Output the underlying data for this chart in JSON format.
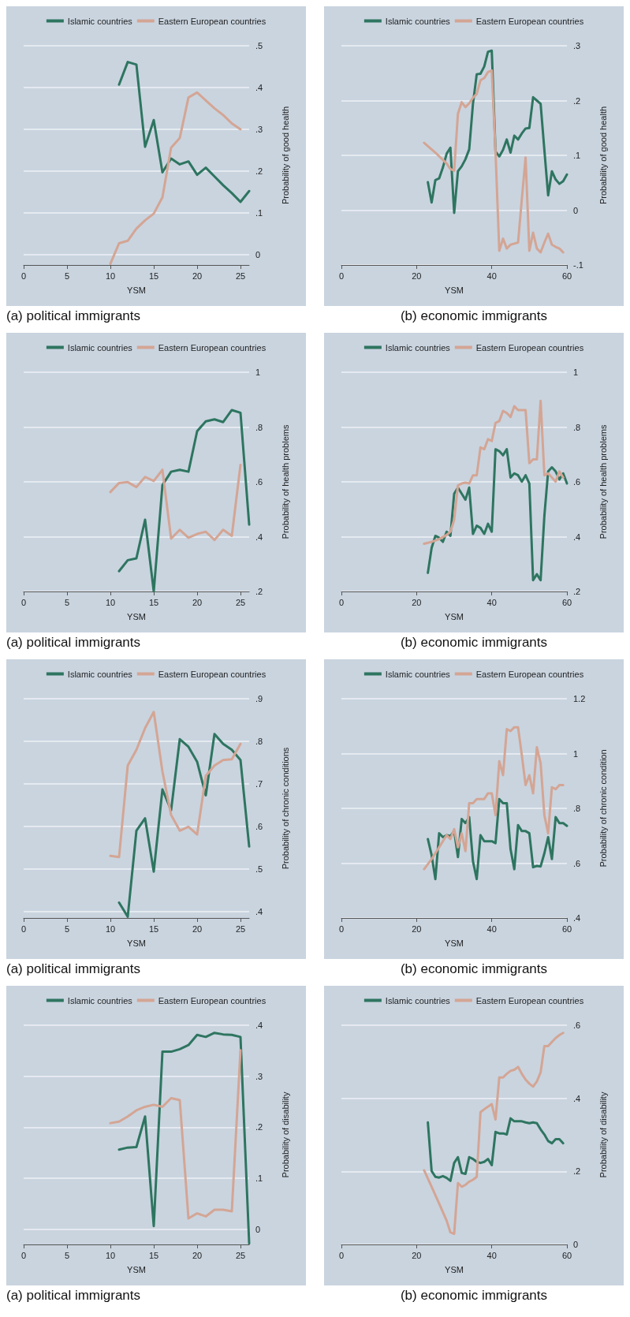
{
  "chart_data": [
    {
      "type": "line",
      "title": "(a) political immigrants",
      "xlabel": "YSM",
      "ylabel": "Probability of good health",
      "legend": "top",
      "grid": "y",
      "xlim": [
        0,
        26
      ],
      "xticks": [
        0,
        5,
        10,
        15,
        20,
        25
      ],
      "ylim": [
        -0.025,
        0.5
      ],
      "yticks": [
        0,
        {
          "value": 0.1,
          "label": ".1"
        },
        {
          "value": 0.2,
          "label": ".2"
        },
        {
          "value": 0.3,
          "label": ".3"
        },
        {
          "value": 0.4,
          "label": ".4"
        },
        {
          "value": 0.5,
          "label": ".5"
        }
      ],
      "series": [
        {
          "name": "Islamic countries",
          "color": "#2e7560",
          "x": [
            11,
            12,
            13,
            14,
            15,
            16,
            17,
            18,
            19,
            20,
            21,
            22,
            23,
            24,
            25,
            26
          ],
          "values": [
            0.407,
            0.461,
            0.455,
            0.258,
            0.322,
            0.197,
            0.23,
            0.216,
            0.223,
            0.191,
            0.208,
            0.187,
            0.166,
            0.147,
            0.126,
            0.152
          ]
        },
        {
          "name": "Eastern European countries",
          "color": "#d4a594",
          "x": [
            10,
            11,
            12,
            13,
            14,
            15,
            16,
            17,
            18,
            19,
            20,
            21,
            22,
            23,
            24,
            25
          ],
          "values": [
            -0.022,
            0.027,
            0.033,
            0.062,
            0.082,
            0.098,
            0.137,
            0.256,
            0.279,
            0.376,
            0.388,
            0.369,
            0.35,
            0.334,
            0.314,
            0.3
          ]
        }
      ]
    },
    {
      "type": "line",
      "title": "(b) economic immigrants",
      "xlabel": "YSM",
      "ylabel": "Probability of good health",
      "legend": "top",
      "grid": "y",
      "xlim": [
        0,
        60
      ],
      "xticks": [
        0,
        20,
        40,
        60
      ],
      "ylim": [
        -0.1,
        0.3
      ],
      "yticks": [
        {
          "value": -0.1,
          "label": "-.1"
        },
        0,
        {
          "value": 0.1,
          "label": ".1"
        },
        {
          "value": 0.2,
          "label": ".2"
        },
        {
          "value": 0.3,
          "label": ".3"
        }
      ],
      "series": [
        {
          "name": "Islamic countries",
          "color": "#2e7560",
          "x": [
            23,
            24,
            25,
            26,
            27,
            28,
            29,
            30,
            31,
            32,
            33,
            34,
            35,
            36,
            37,
            38,
            39,
            40,
            41,
            42,
            43,
            44,
            45,
            46,
            47,
            48,
            49,
            50,
            51,
            52,
            53,
            54,
            55,
            56,
            57,
            58,
            59,
            60
          ],
          "values": [
            0.051,
            0.014,
            0.055,
            0.058,
            0.078,
            0.103,
            0.114,
            -0.005,
            0.071,
            0.08,
            0.093,
            0.111,
            0.194,
            0.248,
            0.249,
            0.262,
            0.289,
            0.291,
            0.107,
            0.098,
            0.11,
            0.129,
            0.105,
            0.136,
            0.129,
            0.14,
            0.149,
            0.15,
            0.206,
            0.2,
            0.194,
            0.11,
            0.027,
            0.071,
            0.056,
            0.048,
            0.053,
            0.065
          ]
        },
        {
          "name": "Eastern European countries",
          "color": "#d4a594",
          "x": [
            22,
            25,
            28,
            29,
            30,
            31,
            32,
            33,
            34,
            35,
            36,
            37,
            38,
            39,
            40,
            41,
            42,
            43,
            44,
            45,
            46,
            47,
            48,
            49,
            50,
            51,
            52,
            53,
            54,
            55,
            56,
            57,
            58,
            59
          ],
          "values": [
            0.123,
            0.105,
            0.085,
            0.075,
            0.072,
            0.176,
            0.197,
            0.188,
            0.195,
            0.205,
            0.212,
            0.237,
            0.241,
            0.252,
            0.255,
            0.107,
            -0.074,
            -0.052,
            -0.07,
            -0.063,
            -0.061,
            -0.059,
            0.02,
            0.096,
            -0.074,
            -0.041,
            -0.07,
            -0.077,
            -0.059,
            -0.043,
            -0.063,
            -0.067,
            -0.07,
            -0.077
          ]
        }
      ]
    },
    {
      "type": "line",
      "title": "(a) political immigrants",
      "xlabel": "YSM",
      "ylabel": "Probability of health problems",
      "legend": "top",
      "grid": "y",
      "xlim": [
        0,
        26
      ],
      "xticks": [
        0,
        5,
        10,
        15,
        20,
        25
      ],
      "ylim": [
        0.2,
        1
      ],
      "yticks": [
        {
          "value": 0.2,
          "label": ".2"
        },
        {
          "value": 0.4,
          "label": ".4"
        },
        {
          "value": 0.6,
          "label": ".6"
        },
        {
          "value": 0.8,
          "label": ".8"
        },
        1
      ],
      "series": [
        {
          "name": "Islamic countries",
          "color": "#2e7560",
          "x": [
            11,
            12,
            13,
            14,
            15,
            16,
            17,
            18,
            19,
            20,
            21,
            22,
            23,
            24,
            25,
            26
          ],
          "values": [
            0.274,
            0.314,
            0.321,
            0.462,
            0.2,
            0.588,
            0.637,
            0.644,
            0.637,
            0.785,
            0.821,
            0.828,
            0.818,
            0.862,
            0.852,
            0.444
          ]
        },
        {
          "name": "Eastern European countries",
          "color": "#d4a594",
          "x": [
            10,
            11,
            12,
            13,
            14,
            15,
            16,
            17,
            18,
            19,
            20,
            21,
            22,
            23,
            24,
            25
          ],
          "values": [
            0.563,
            0.596,
            0.599,
            0.581,
            0.618,
            0.603,
            0.644,
            0.393,
            0.425,
            0.396,
            0.41,
            0.418,
            0.388,
            0.425,
            0.403,
            0.662
          ]
        }
      ]
    },
    {
      "type": "line",
      "title": "(b) economic immigrants",
      "xlabel": "YSM",
      "ylabel": "Probability of health problems",
      "legend": "top",
      "grid": "y",
      "xlim": [
        0,
        60
      ],
      "xticks": [
        0,
        20,
        40,
        60
      ],
      "ylim": [
        0.2,
        1
      ],
      "yticks": [
        {
          "value": 0.2,
          "label": ".2"
        },
        {
          "value": 0.4,
          "label": ".4"
        },
        {
          "value": 0.6,
          "label": ".6"
        },
        {
          "value": 0.8,
          "label": ".8"
        },
        1
      ],
      "series": [
        {
          "name": "Islamic countries",
          "color": "#2e7560",
          "x": [
            23,
            24,
            25,
            26,
            27,
            28,
            29,
            30,
            31,
            32,
            33,
            34,
            35,
            36,
            37,
            38,
            39,
            40,
            41,
            42,
            43,
            44,
            45,
            46,
            47,
            48,
            49,
            50,
            51,
            52,
            53,
            54,
            55,
            56,
            57,
            58,
            59,
            60
          ],
          "values": [
            0.268,
            0.359,
            0.403,
            0.396,
            0.381,
            0.418,
            0.403,
            0.557,
            0.579,
            0.557,
            0.535,
            0.579,
            0.41,
            0.44,
            0.432,
            0.41,
            0.447,
            0.418,
            0.719,
            0.712,
            0.697,
            0.719,
            0.616,
            0.631,
            0.624,
            0.601,
            0.624,
            0.594,
            0.241,
            0.263,
            0.241,
            0.476,
            0.638,
            0.653,
            0.638,
            0.609,
            0.631,
            0.594
          ]
        },
        {
          "name": "Eastern European countries",
          "color": "#d4a594",
          "x": [
            22,
            24,
            26,
            28,
            29,
            30,
            31,
            32,
            33,
            34,
            35,
            36,
            37,
            38,
            39,
            40,
            41,
            42,
            43,
            44,
            45,
            46,
            47,
            48,
            49,
            50,
            51,
            52,
            53,
            54,
            55,
            56,
            57,
            58,
            59
          ],
          "values": [
            0.374,
            0.381,
            0.391,
            0.406,
            0.418,
            0.462,
            0.587,
            0.594,
            0.597,
            0.594,
            0.624,
            0.624,
            0.726,
            0.719,
            0.756,
            0.749,
            0.815,
            0.822,
            0.859,
            0.851,
            0.837,
            0.876,
            0.862,
            0.862,
            0.862,
            0.668,
            0.682,
            0.682,
            0.896,
            0.624,
            0.631,
            0.616,
            0.601,
            0.638,
            0.616
          ]
        }
      ]
    },
    {
      "type": "line",
      "title": "(a) political immigrants",
      "xlabel": "YSM",
      "ylabel": "Probability of chronic conditions",
      "legend": "top",
      "grid": "y",
      "xlim": [
        0,
        26
      ],
      "xticks": [
        0,
        5,
        10,
        15,
        20,
        25
      ],
      "ylim": [
        0.385,
        0.9
      ],
      "yticks": [
        {
          "value": 0.4,
          "label": ".4"
        },
        {
          "value": 0.5,
          "label": ".5"
        },
        {
          "value": 0.6,
          "label": ".6"
        },
        {
          "value": 0.7,
          "label": ".7"
        },
        {
          "value": 0.8,
          "label": ".8"
        },
        {
          "value": 0.9,
          "label": ".9"
        }
      ],
      "series": [
        {
          "name": "Islamic countries",
          "color": "#2e7560",
          "x": [
            11,
            12,
            13,
            14,
            15,
            16,
            17,
            18,
            19,
            20,
            21,
            22,
            23,
            24,
            25,
            26
          ],
          "values": [
            0.421,
            0.388,
            0.59,
            0.619,
            0.494,
            0.687,
            0.638,
            0.805,
            0.787,
            0.752,
            0.673,
            0.817,
            0.794,
            0.78,
            0.756,
            0.553
          ]
        },
        {
          "name": "Eastern European countries",
          "color": "#d4a594",
          "x": [
            10,
            11,
            12,
            13,
            14,
            15,
            16,
            17,
            18,
            19,
            20,
            21,
            22,
            23,
            24,
            25
          ],
          "values": [
            0.531,
            0.528,
            0.743,
            0.78,
            0.831,
            0.869,
            0.729,
            0.627,
            0.59,
            0.599,
            0.581,
            0.719,
            0.743,
            0.756,
            0.758,
            0.794
          ]
        }
      ]
    },
    {
      "type": "line",
      "title": "(b) economic immigrants",
      "xlabel": "YSM",
      "ylabel": "Probability of chronic condition",
      "legend": "top",
      "grid": "y",
      "xlim": [
        0,
        60
      ],
      "xticks": [
        0,
        20,
        40,
        60
      ],
      "ylim": [
        0.4,
        1.2
      ],
      "yticks": [
        {
          "value": 0.4,
          "label": ".4"
        },
        {
          "value": 0.6,
          "label": ".6"
        },
        {
          "value": 0.8,
          "label": ".8"
        },
        1,
        1.2
      ],
      "series": [
        {
          "name": "Islamic countries",
          "color": "#2e7560",
          "x": [
            23,
            24,
            25,
            26,
            27,
            28,
            29,
            30,
            31,
            32,
            33,
            34,
            35,
            36,
            37,
            38,
            39,
            40,
            41,
            42,
            43,
            44,
            45,
            46,
            47,
            48,
            49,
            50,
            51,
            52,
            53,
            54,
            55,
            56,
            57,
            58,
            59,
            60
          ],
          "values": [
            0.688,
            0.629,
            0.542,
            0.709,
            0.695,
            0.702,
            0.699,
            0.717,
            0.622,
            0.761,
            0.746,
            0.768,
            0.607,
            0.542,
            0.702,
            0.68,
            0.68,
            0.68,
            0.673,
            0.834,
            0.819,
            0.819,
            0.651,
            0.578,
            0.739,
            0.717,
            0.717,
            0.709,
            0.585,
            0.59,
            0.588,
            0.636,
            0.695,
            0.615,
            0.768,
            0.746,
            0.746,
            0.736
          ]
        },
        {
          "name": "Eastern European countries",
          "color": "#d4a594",
          "x": [
            22,
            24,
            26,
            28,
            29,
            30,
            31,
            32,
            33,
            34,
            35,
            36,
            37,
            38,
            39,
            40,
            41,
            42,
            43,
            44,
            45,
            46,
            47,
            48,
            49,
            50,
            51,
            52,
            53,
            54,
            55,
            56,
            57,
            58,
            59
          ],
          "values": [
            0.578,
            0.615,
            0.658,
            0.702,
            0.688,
            0.724,
            0.658,
            0.709,
            0.644,
            0.819,
            0.819,
            0.834,
            0.834,
            0.834,
            0.855,
            0.855,
            0.775,
            0.972,
            0.921,
            1.089,
            1.082,
            1.096,
            1.096,
            0.994,
            0.885,
            0.921,
            0.855,
            1.023,
            0.965,
            0.775,
            0.709,
            0.877,
            0.87,
            0.885,
            0.885
          ]
        }
      ]
    },
    {
      "type": "line",
      "title": "(a) political immigrants",
      "xlabel": "YSM",
      "ylabel": "Probability of disability",
      "legend": "top",
      "grid": "y",
      "xlim": [
        0,
        26
      ],
      "xticks": [
        0,
        5,
        10,
        15,
        20,
        25
      ],
      "ylim": [
        -0.03,
        0.4
      ],
      "yticks": [
        0,
        {
          "value": 0.1,
          "label": ".1"
        },
        {
          "value": 0.2,
          "label": ".2"
        },
        {
          "value": 0.3,
          "label": ".3"
        },
        {
          "value": 0.4,
          "label": ".4"
        }
      ],
      "series": [
        {
          "name": "Islamic countries",
          "color": "#2e7560",
          "x": [
            11,
            12,
            13,
            14,
            15,
            16,
            17,
            18,
            19,
            20,
            21,
            22,
            23,
            24,
            25,
            26
          ],
          "values": [
            0.156,
            0.16,
            0.161,
            0.221,
            0.006,
            0.348,
            0.348,
            0.353,
            0.361,
            0.381,
            0.377,
            0.385,
            0.382,
            0.381,
            0.377,
            -0.028
          ]
        },
        {
          "name": "Eastern European countries",
          "color": "#d4a594",
          "x": [
            10,
            11,
            12,
            13,
            14,
            15,
            16,
            17,
            18,
            19,
            20,
            21,
            22,
            23,
            24,
            25
          ],
          "values": [
            0.208,
            0.211,
            0.221,
            0.233,
            0.24,
            0.244,
            0.24,
            0.257,
            0.253,
            0.021,
            0.031,
            0.025,
            0.038,
            0.038,
            0.035,
            0.351
          ]
        }
      ]
    },
    {
      "type": "line",
      "title": "(b) economic immigrants",
      "xlabel": "YSM",
      "ylabel": "Probability of disability",
      "legend": "top",
      "grid": "y",
      "xlim": [
        0,
        60
      ],
      "xticks": [
        0,
        20,
        40,
        60
      ],
      "ylim": [
        0,
        0.6
      ],
      "yticks": [
        0,
        {
          "value": 0.2,
          "label": ".2"
        },
        {
          "value": 0.4,
          "label": ".4"
        },
        {
          "value": 0.6,
          "label": ".6"
        }
      ],
      "series": [
        {
          "name": "Islamic countries",
          "color": "#2e7560",
          "x": [
            23,
            24,
            25,
            26,
            27,
            28,
            29,
            30,
            31,
            32,
            33,
            34,
            35,
            36,
            37,
            38,
            39,
            40,
            41,
            42,
            43,
            44,
            45,
            46,
            47,
            48,
            49,
            50,
            51,
            52,
            53,
            54,
            55,
            56,
            57,
            58,
            59
          ],
          "values": [
            0.334,
            0.201,
            0.185,
            0.183,
            0.187,
            0.182,
            0.174,
            0.223,
            0.239,
            0.196,
            0.193,
            0.239,
            0.234,
            0.226,
            0.223,
            0.226,
            0.234,
            0.217,
            0.308,
            0.304,
            0.304,
            0.301,
            0.345,
            0.337,
            0.337,
            0.337,
            0.334,
            0.332,
            0.334,
            0.332,
            0.315,
            0.301,
            0.283,
            0.277,
            0.288,
            0.288,
            0.277
          ]
        },
        {
          "name": "Eastern European countries",
          "color": "#d4a594",
          "x": [
            22,
            24,
            26,
            28,
            29,
            30,
            31,
            32,
            33,
            34,
            35,
            36,
            37,
            38,
            39,
            40,
            41,
            42,
            43,
            44,
            45,
            46,
            47,
            48,
            49,
            50,
            51,
            52,
            53,
            54,
            55,
            56,
            57,
            58,
            59
          ],
          "values": [
            0.203,
            0.158,
            0.112,
            0.065,
            0.033,
            0.029,
            0.168,
            0.158,
            0.163,
            0.172,
            0.177,
            0.185,
            0.362,
            0.37,
            0.377,
            0.384,
            0.342,
            0.457,
            0.457,
            0.467,
            0.475,
            0.478,
            0.486,
            0.467,
            0.451,
            0.44,
            0.432,
            0.446,
            0.471,
            0.543,
            0.543,
            0.554,
            0.565,
            0.573,
            0.579
          ]
        }
      ]
    }
  ]
}
